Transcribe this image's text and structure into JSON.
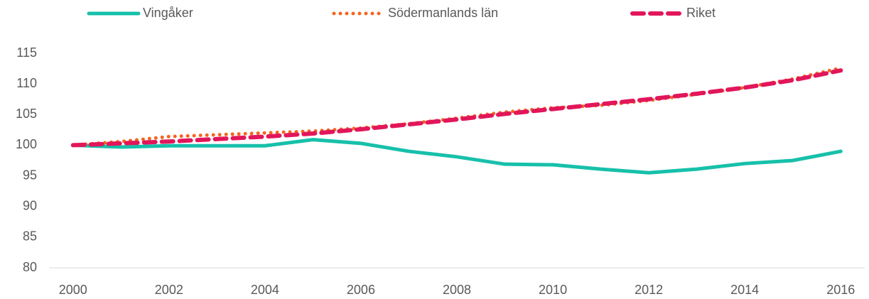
{
  "chart_data": {
    "type": "line",
    "x": [
      2000,
      2001,
      2002,
      2003,
      2004,
      2005,
      2006,
      2007,
      2008,
      2009,
      2010,
      2011,
      2012,
      2013,
      2014,
      2015,
      2016
    ],
    "series": [
      {
        "name": "Vingåker",
        "color": "#17c0aa",
        "line_style": "solid",
        "values": [
          100.0,
          99.7,
          99.9,
          99.9,
          99.9,
          100.9,
          100.3,
          99.0,
          98.1,
          96.9,
          96.8,
          96.1,
          95.5,
          96.1,
          97.0,
          97.5,
          99.0
        ]
      },
      {
        "name": "Södermanlands län",
        "color": "#f26522",
        "line_style": "dotted",
        "values": [
          100.0,
          100.6,
          101.4,
          101.7,
          102.0,
          102.3,
          102.8,
          103.5,
          104.4,
          105.4,
          106.1,
          106.5,
          107.3,
          108.3,
          109.4,
          110.8,
          112.6
        ]
      },
      {
        "name": "Riket",
        "color": "#e2165a",
        "line_style": "dashed",
        "values": [
          100.0,
          100.3,
          100.6,
          101.0,
          101.4,
          101.9,
          102.6,
          103.4,
          104.2,
          105.1,
          105.9,
          106.7,
          107.5,
          108.4,
          109.4,
          110.6,
          112.2
        ]
      }
    ],
    "xlim": [
      1999.5,
      2016.5
    ],
    "xticks": [
      2000,
      2002,
      2004,
      2006,
      2008,
      2010,
      2012,
      2014,
      2016
    ],
    "ylim": [
      80,
      115
    ],
    "yticks": [
      80,
      85,
      90,
      95,
      100,
      105,
      110,
      115
    ],
    "grid": false,
    "legend": "top"
  }
}
